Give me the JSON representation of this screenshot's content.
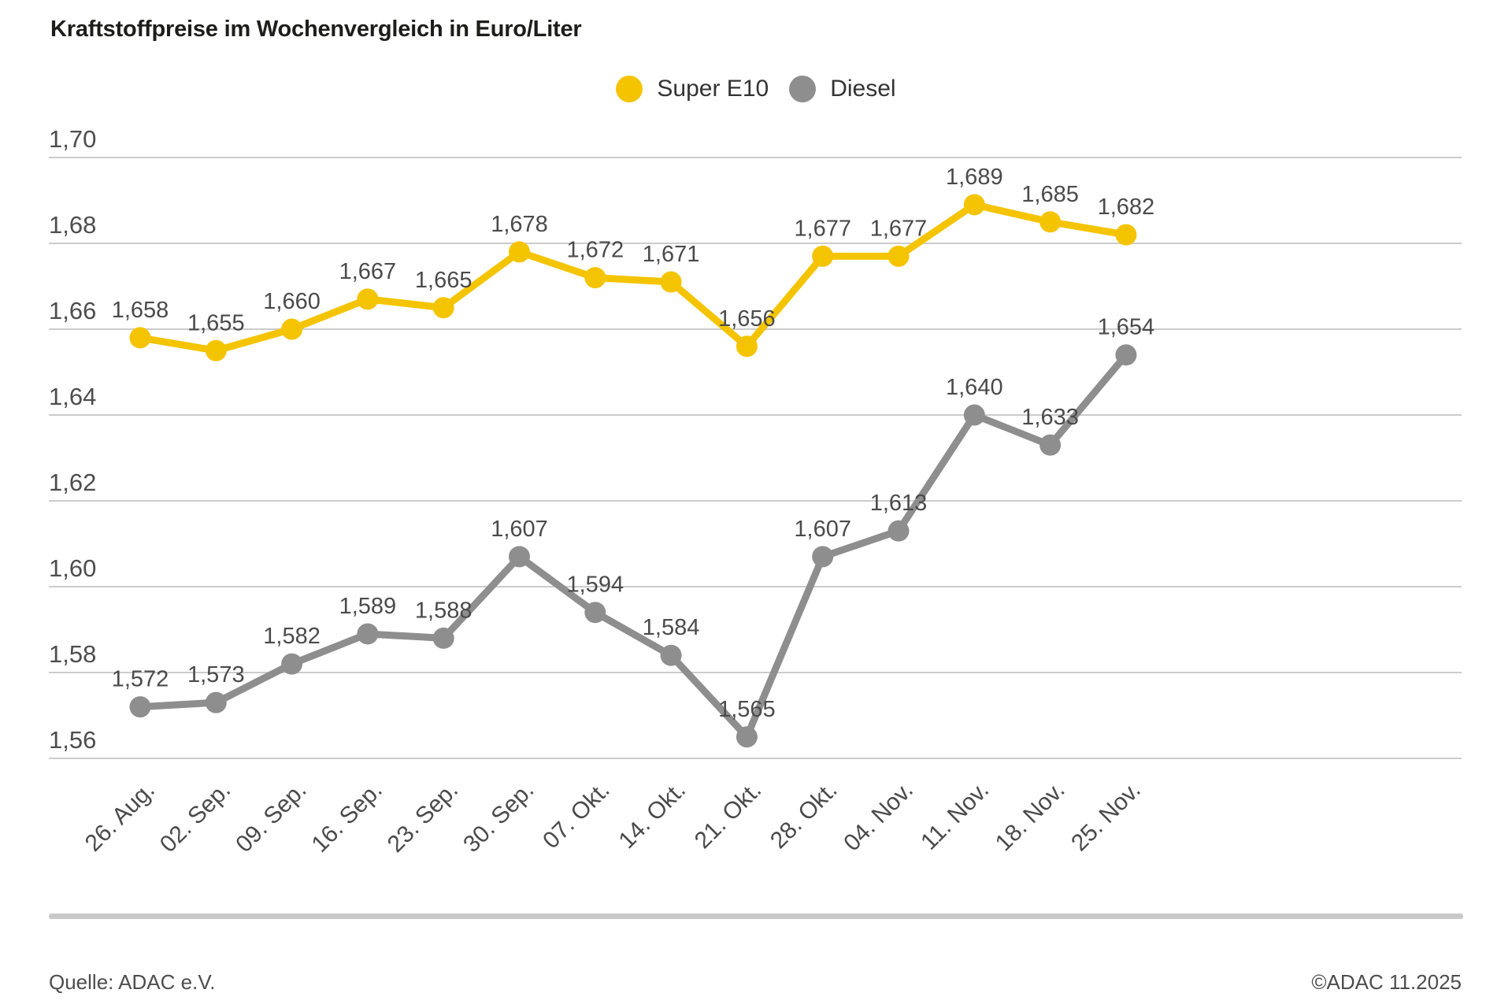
{
  "chart_data": {
    "type": "line",
    "title": "Kraftstoffpreise im Wochenvergleich in Euro/Liter",
    "categories": [
      "26. Aug.",
      "02. Sep.",
      "09. Sep.",
      "16. Sep.",
      "23. Sep.",
      "30. Sep.",
      "07. Okt.",
      "14. Okt.",
      "21. Okt.",
      "28. Okt.",
      "04. Nov.",
      "11. Nov.",
      "18. Nov.",
      "25. Nov."
    ],
    "series": [
      {
        "name": "Super E10",
        "color": "#F5C400",
        "values": [
          1.658,
          1.655,
          1.66,
          1.667,
          1.665,
          1.678,
          1.672,
          1.671,
          1.656,
          1.677,
          1.677,
          1.689,
          1.685,
          1.682
        ]
      },
      {
        "name": "Diesel",
        "color": "#8E8E8E",
        "values": [
          1.572,
          1.573,
          1.582,
          1.589,
          1.588,
          1.607,
          1.594,
          1.584,
          1.565,
          1.607,
          1.613,
          1.64,
          1.633,
          1.654
        ]
      }
    ],
    "xlabel": "",
    "ylabel": "Euro/Liter",
    "ylim": [
      1.56,
      1.7
    ],
    "ytick_step": 0.02,
    "yticks": [
      "1,70",
      "1,68",
      "1,66",
      "1,64",
      "1,62",
      "1,60",
      "1,58",
      "1,56"
    ],
    "grid": true,
    "legend_position": "top-center",
    "data_labels": true,
    "decimal_separator": ","
  },
  "footer": {
    "source": "Quelle: ADAC e.V.",
    "copyright": "©ADAC 11.2025"
  },
  "colors": {
    "gridline": "#cccccc",
    "tick_text": "#4d4d4d",
    "label_text": "#4a4a4a",
    "title_text": "#1d1d1b"
  }
}
